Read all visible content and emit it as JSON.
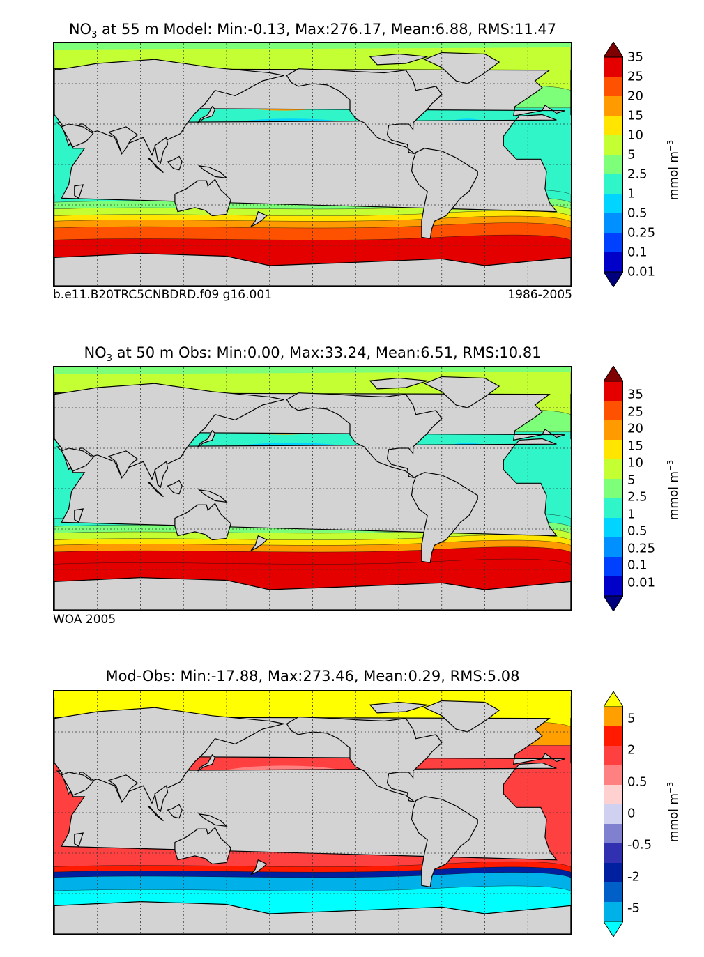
{
  "colors": {
    "land": "#d3d3d3",
    "nitrate_scale": [
      "#00007f",
      "#0000c8",
      "#0040ff",
      "#0090ff",
      "#00d4ff",
      "#30f5c8",
      "#7dff7a",
      "#c4ff34",
      "#ffe500",
      "#ff9a00",
      "#ff5200",
      "#e50000",
      "#7f0000"
    ],
    "diff_scale": [
      "#00ffff",
      "#00b0e8",
      "#0060c8",
      "#0020a0",
      "#3030b0",
      "#8080d0",
      "#d0d0f0",
      "#ffd0d0",
      "#ff8080",
      "#ff4040",
      "#ff1a00",
      "#ffa000",
      "#ffff00"
    ]
  },
  "panels": [
    {
      "id": "model",
      "title_prefix": "NO",
      "title_subscript": "3",
      "title_suffix": " at 55 m Model: Min:-0.13, Max:276.17, Mean:6.88, RMS:11.47",
      "caption_left": "b.e11.B20TRC5CNBDRD.f09 g16.001",
      "caption_right": "1986-2005",
      "colorbar": {
        "ticks": [
          "35",
          "25",
          "20",
          "15",
          "10",
          "5",
          "2.5",
          "1",
          "0.5",
          "0.25",
          "0.1",
          "0.01"
        ],
        "units_text": "mmol m",
        "units_exp": "−3"
      }
    },
    {
      "id": "obs",
      "title_prefix": "NO",
      "title_subscript": "3",
      "title_suffix": " at 50 m Obs: Min:0.00, Max:33.24, Mean:6.51, RMS:10.81",
      "caption_left": "WOA 2005",
      "caption_right": "",
      "colorbar": {
        "ticks": [
          "35",
          "25",
          "20",
          "15",
          "10",
          "5",
          "2.5",
          "1",
          "0.5",
          "0.25",
          "0.1",
          "0.01"
        ],
        "units_text": "mmol m",
        "units_exp": "−3"
      }
    },
    {
      "id": "diff",
      "title_prefix": "",
      "title_subscript": "",
      "title_suffix": "Mod-Obs: Min:-17.88, Max:273.46, Mean:0.29, RMS:5.08",
      "caption_left": "",
      "caption_right": "",
      "colorbar": {
        "ticks": [
          "5",
          "2",
          "0.5",
          "0",
          "-0.5",
          "-2",
          "-5"
        ],
        "units_text": "mmol m",
        "units_exp": "−3"
      }
    }
  ],
  "chart_data": [
    {
      "type": "heatmap",
      "title": "NO3 at 55 m Model: Min:-0.13, Max:276.17, Mean:6.88, RMS:11.47",
      "variable": "Nitrate (NO3)",
      "depth_m": 55,
      "source": "Model",
      "stats": {
        "min": -0.13,
        "max": 276.17,
        "mean": 6.88,
        "rms": 11.47
      },
      "colorbar_levels": [
        0.01,
        0.1,
        0.25,
        0.5,
        1,
        2.5,
        5,
        10,
        15,
        20,
        25,
        35
      ],
      "units": "mmol m^-3",
      "period": "1986-2005",
      "case": "b.e11.B20TRC5CNBDRD.f09 g16.001"
    },
    {
      "type": "heatmap",
      "title": "NO3 at 50 m Obs: Min:0.00, Max:33.24, Mean:6.51, RMS:10.81",
      "variable": "Nitrate (NO3)",
      "depth_m": 50,
      "source": "Obs",
      "stats": {
        "min": 0.0,
        "max": 33.24,
        "mean": 6.51,
        "rms": 10.81
      },
      "colorbar_levels": [
        0.01,
        0.1,
        0.25,
        0.5,
        1,
        2.5,
        5,
        10,
        15,
        20,
        25,
        35
      ],
      "units": "mmol m^-3",
      "dataset": "WOA 2005"
    },
    {
      "type": "heatmap",
      "title": "Mod-Obs: Min:-17.88, Max:273.46, Mean:0.29, RMS:5.08",
      "variable": "Model minus Observation",
      "stats": {
        "min": -17.88,
        "max": 273.46,
        "mean": 0.29,
        "rms": 5.08
      },
      "colorbar_levels": [
        -5,
        -2,
        -0.5,
        0,
        0.5,
        2,
        5
      ],
      "units": "mmol m^-3"
    }
  ]
}
